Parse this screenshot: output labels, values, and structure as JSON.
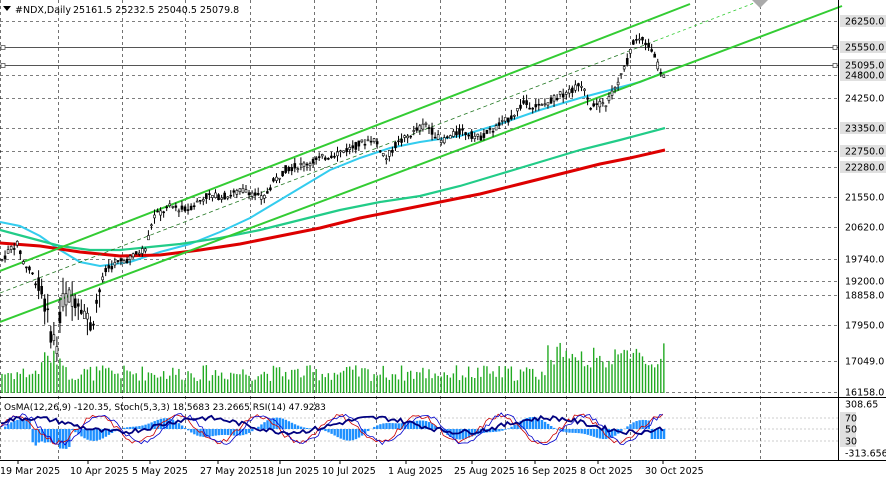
{
  "chart_data": {
    "type": "candlestick",
    "header": {
      "symbol": "#NDX,Daily",
      "ohlc": "25161.5 25232.5 25040.5 25079.8"
    },
    "price_ticks": [
      "26250.0",
      "25550.0",
      "25095.0",
      "24800.0",
      "24250.0",
      "23350.0",
      "22750.0",
      "22280.0",
      "21550.0",
      "20620.0",
      "19740.0",
      "19200.0",
      "18858.0",
      "17950.0",
      "17049.0",
      "16158.0"
    ],
    "date_ticks": [
      "19 Mar 2025",
      "10 Apr 2025",
      "5 May 2025",
      "27 May 2025",
      "18 Jun 2025",
      "10 Jul 2025",
      "1 Aug 2025",
      "25 Aug 2025",
      "16 Sep 2025",
      "8 Oct 2025",
      "30 Oct 2025"
    ],
    "ylim": [
      15900,
      26700
    ],
    "highlighted_levels": [
      "26250.0",
      "25550.0",
      "25095.0",
      "24800.0",
      "23350.0",
      "22750.0",
      "22280.0"
    ],
    "price_series_approx": [
      {
        "date": "19 Mar 2025",
        "close": 19700
      },
      {
        "date": "25 Mar 2025",
        "close": 20200
      },
      {
        "date": "4 Apr 2025",
        "close": 17400
      },
      {
        "date": "10 Apr 2025",
        "close": 18500
      },
      {
        "date": "22 Apr 2025",
        "close": 19300
      },
      {
        "date": "5 May 2025",
        "close": 20000
      },
      {
        "date": "27 May 2025",
        "close": 21500
      },
      {
        "date": "18 Jun 2025",
        "close": 21900
      },
      {
        "date": "10 Jul 2025",
        "close": 22800
      },
      {
        "date": "1 Aug 2025",
        "close": 23200
      },
      {
        "date": "25 Aug 2025",
        "close": 23500
      },
      {
        "date": "16 Sep 2025",
        "close": 24300
      },
      {
        "date": "8 Oct 2025",
        "close": 24800
      },
      {
        "date": "30 Oct 2025",
        "close": 26100
      },
      {
        "date": "6 Nov 2025",
        "close": 25079.8
      }
    ],
    "indicators": {
      "label": "OsMA(12,26,9) -120.35, Stoch(5,3,3) 18.5683 23.2665 RSI(14) 47.9283",
      "ticks": [
        "308.65",
        "70",
        "50",
        "30",
        "-313.656"
      ]
    },
    "colors": {
      "candle": "#000000",
      "channel": "#33cc33",
      "ma_fast": "#33ccee",
      "ma_mid": "#22cc88",
      "ma_slow": "#dd0000",
      "volume": "#22aa22",
      "osma": "#1e90ff",
      "rsi": "#000080",
      "stoch_main": "#0000cc",
      "stoch_signal": "#cc0000"
    }
  }
}
